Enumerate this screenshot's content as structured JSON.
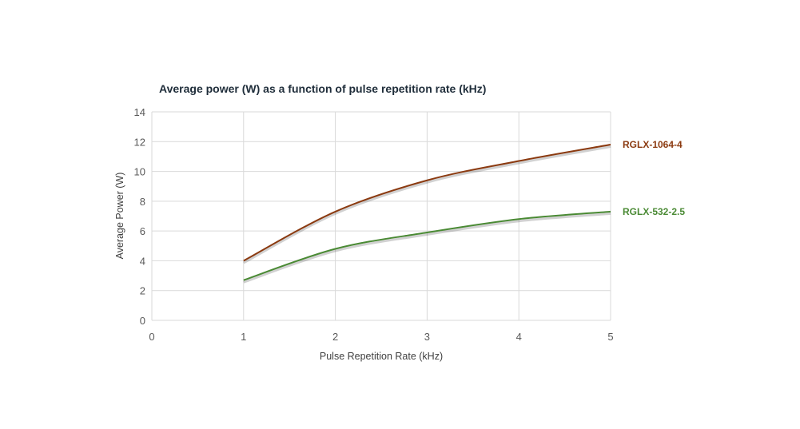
{
  "chart_data": {
    "type": "line",
    "title": "Average power (W) as a function of pulse repetition rate (kHz)",
    "xlabel": "Pulse Repetition Rate (kHz)",
    "ylabel": "Average Power (W)",
    "xlim": [
      0,
      5
    ],
    "ylim": [
      0,
      14
    ],
    "x_ticks": [
      0,
      1,
      2,
      3,
      4,
      5
    ],
    "y_ticks": [
      0,
      2,
      4,
      6,
      8,
      10,
      12,
      14
    ],
    "grid": true,
    "legend": "series labels at right end of lines",
    "series": [
      {
        "name": "RGLX-1064-4",
        "color": "#8b3a10",
        "x": [
          1,
          2,
          3,
          4,
          5
        ],
        "y": [
          4.0,
          7.3,
          9.4,
          10.7,
          11.8
        ]
      },
      {
        "name": "RGLX-532-2.5",
        "color": "#4a8a34",
        "x": [
          1,
          2,
          3,
          4,
          5
        ],
        "y": [
          2.7,
          4.8,
          5.9,
          6.8,
          7.3
        ]
      }
    ]
  }
}
